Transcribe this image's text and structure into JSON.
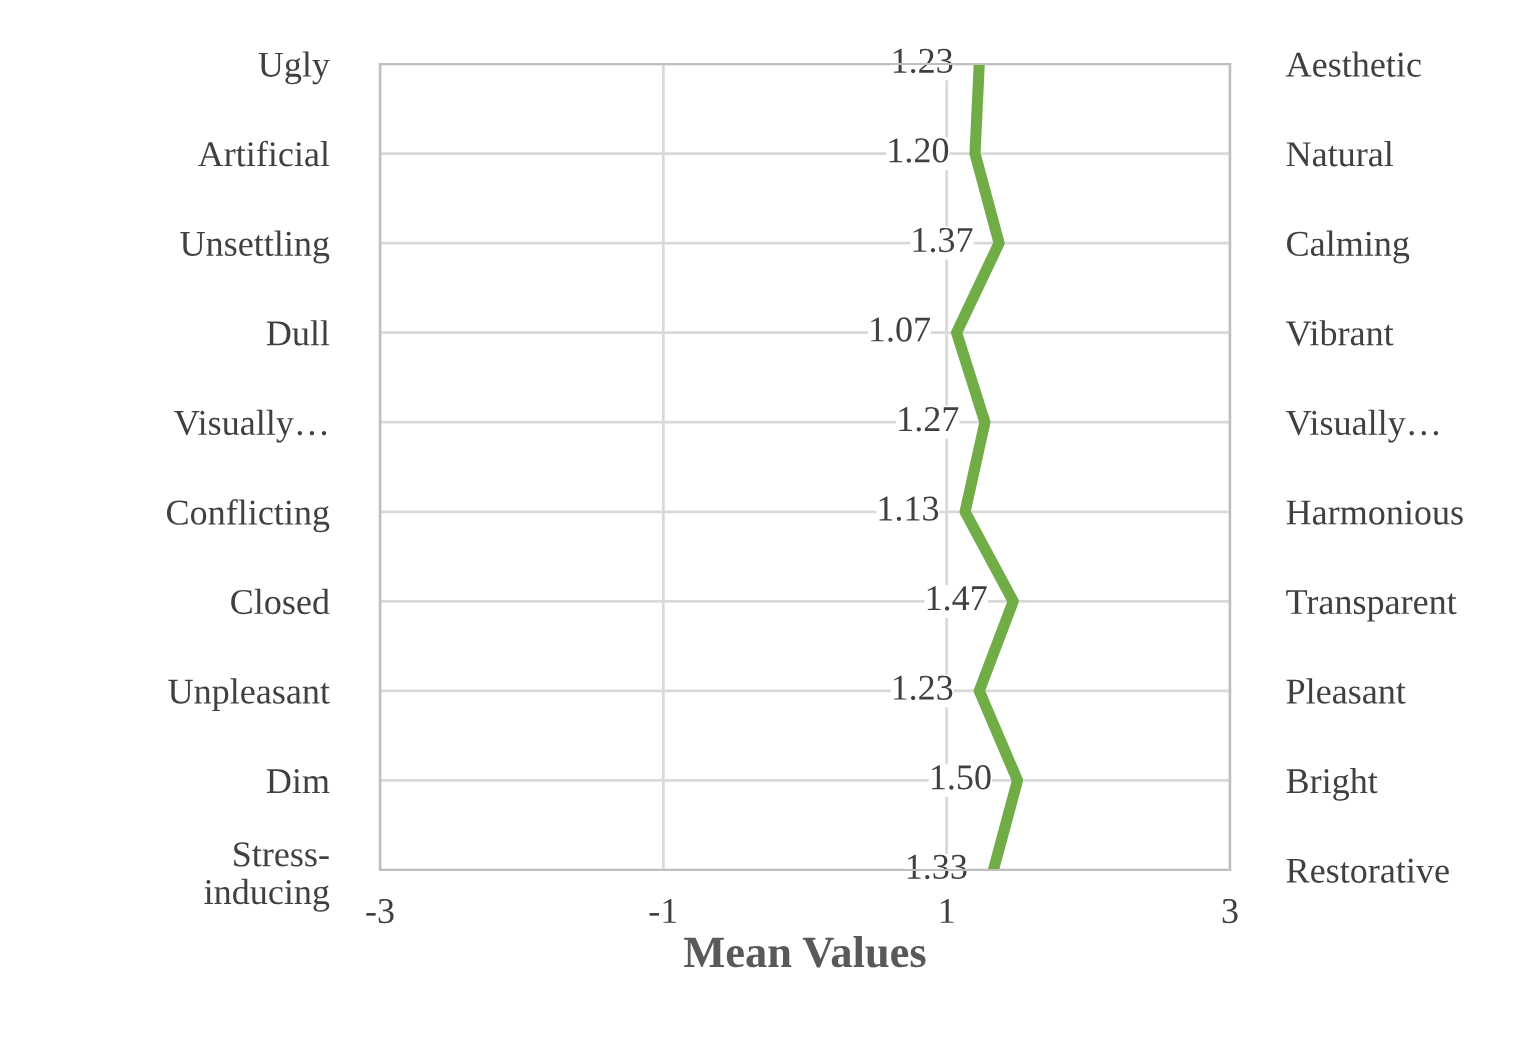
{
  "chart_data": {
    "type": "line",
    "orientation": "horizontal",
    "xlabel": "Mean Values",
    "categories": [
      "Ugly",
      "Artificial",
      "Unsettling",
      "Dull",
      "Visually…",
      "Conflicting",
      "Closed",
      "Unpleasant",
      "Dim",
      "Stress-\ninducing"
    ],
    "y2_categories": [
      "Aesthetic",
      "Natural",
      "Calming",
      "Vibrant",
      "Visually…",
      "Harmonious",
      "Transparent",
      "Pleasant",
      "Bright",
      "Restorative"
    ],
    "series": [
      {
        "color": "#70ad47",
        "values": [
          1.23,
          1.2,
          1.37,
          1.07,
          1.27,
          1.13,
          1.47,
          1.23,
          1.5,
          1.33
        ],
        "value_labels": [
          "1.23",
          "1.20",
          "1.37",
          "1.07",
          "1.27",
          "1.13",
          "1.47",
          "1.23",
          "1.50",
          "1.33"
        ]
      }
    ],
    "xlim": [
      -3,
      3
    ],
    "xticks": [
      -3,
      -1,
      1,
      3
    ],
    "grid": true,
    "marker": "none",
    "line_style": "solid",
    "legend": false
  }
}
